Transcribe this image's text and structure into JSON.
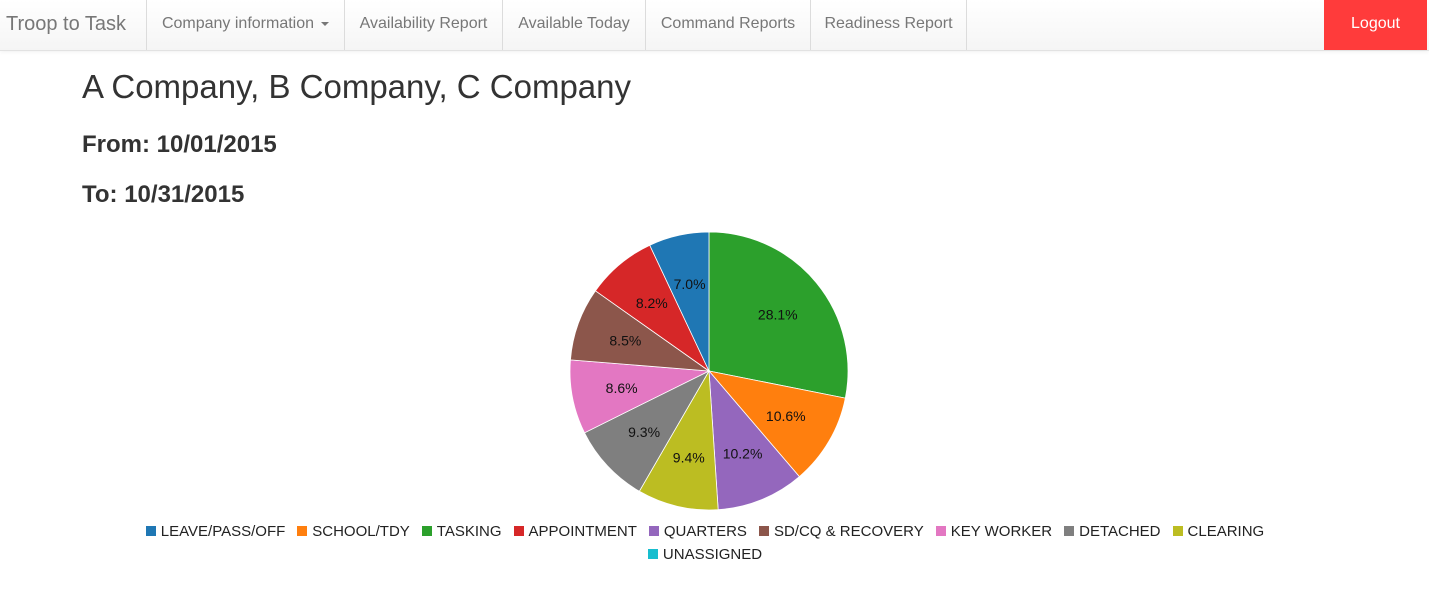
{
  "nav": {
    "brand": "Troop to Task",
    "items": [
      {
        "label": "Company information",
        "dropdown": true
      },
      {
        "label": "Availability Report"
      },
      {
        "label": "Available Today"
      },
      {
        "label": "Command Reports"
      },
      {
        "label": "Readiness Report"
      }
    ],
    "logout": "Logout"
  },
  "page": {
    "title": "A Company, B Company, C Company",
    "from": "From: 10/01/2015",
    "to": "To: 10/31/2015"
  },
  "chart_data": {
    "type": "pie",
    "start": "12 o'clock",
    "direction": "clockwise",
    "slices": [
      {
        "label": "TASKING",
        "value": 28.1,
        "display": "28.1%",
        "color": "#2ca02c"
      },
      {
        "label": "SCHOOL/TDY",
        "value": 10.6,
        "display": "10.6%",
        "color": "#ff7f0e"
      },
      {
        "label": "QUARTERS",
        "value": 10.2,
        "display": "10.2%",
        "color": "#9467bd"
      },
      {
        "label": "CLEARING",
        "value": 9.4,
        "display": "9.4%",
        "color": "#bcbd22"
      },
      {
        "label": "DETACHED",
        "value": 9.3,
        "display": "9.3%",
        "color": "#7f7f7f"
      },
      {
        "label": "KEY WORKER",
        "value": 8.6,
        "display": "8.6%",
        "color": "#e377c2"
      },
      {
        "label": "SD/CQ & RECOVERY",
        "value": 8.5,
        "display": "8.5%",
        "color": "#8c564b"
      },
      {
        "label": "APPOINTMENT",
        "value": 8.2,
        "display": "8.2%",
        "color": "#d62728"
      },
      {
        "label": "LEAVE/PASS/OFF",
        "value": 7.0,
        "display": "7.0%",
        "color": "#1f77b4"
      }
    ],
    "legend": [
      {
        "label": "LEAVE/PASS/OFF",
        "color": "#1f77b4"
      },
      {
        "label": "SCHOOL/TDY",
        "color": "#ff7f0e"
      },
      {
        "label": "TASKING",
        "color": "#2ca02c"
      },
      {
        "label": "APPOINTMENT",
        "color": "#d62728"
      },
      {
        "label": "QUARTERS",
        "color": "#9467bd"
      },
      {
        "label": "SD/CQ & RECOVERY",
        "color": "#8c564b"
      },
      {
        "label": "KEY WORKER",
        "color": "#e377c2"
      },
      {
        "label": "DETACHED",
        "color": "#7f7f7f"
      },
      {
        "label": "CLEARING",
        "color": "#bcbd22"
      },
      {
        "label": "UNASSIGNED",
        "color": "#17becf"
      }
    ],
    "legend_position": "bottom"
  }
}
